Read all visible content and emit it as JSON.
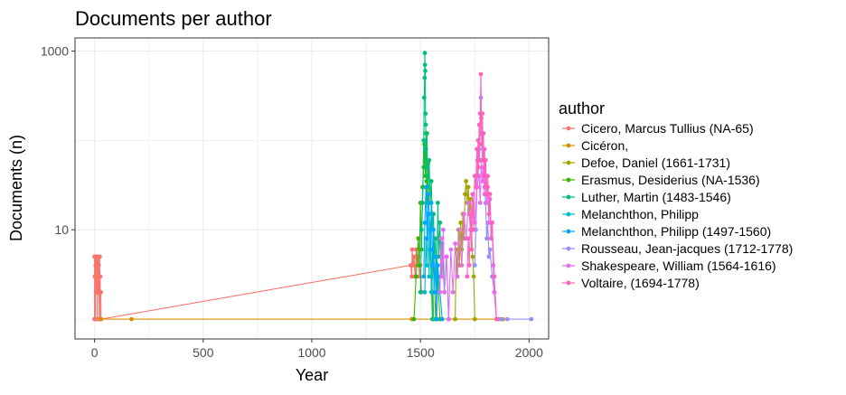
{
  "chart_data": {
    "type": "line",
    "title": "Documents per author",
    "xlabel": "Year",
    "ylabel": "Documents (n)",
    "x_ticks": [
      "0",
      "500",
      "1000",
      "1500",
      "2000"
    ],
    "y_ticks": [
      "10",
      "1000"
    ],
    "xlim": [
      -90,
      2090
    ],
    "ylim": [
      0.6,
      1400
    ],
    "y_scale": "log",
    "grid": true,
    "legend_title": "author",
    "legend_position": "right",
    "series": [
      {
        "name": "Cicero, Marcus Tullius (NA-65)",
        "color": "#F8766D",
        "points": [
          [
            0,
            1
          ],
          [
            0,
            5
          ],
          [
            1,
            3
          ],
          [
            2,
            5
          ],
          [
            3,
            1
          ],
          [
            4,
            3
          ],
          [
            5,
            4
          ],
          [
            6,
            2
          ],
          [
            7,
            5
          ],
          [
            8,
            3
          ],
          [
            9,
            2
          ],
          [
            10,
            4
          ],
          [
            11,
            5
          ],
          [
            12,
            1
          ],
          [
            13,
            3
          ],
          [
            14,
            4
          ],
          [
            15,
            5
          ],
          [
            16,
            2
          ],
          [
            17,
            3
          ],
          [
            18,
            5
          ],
          [
            19,
            4
          ],
          [
            20,
            3
          ],
          [
            21,
            1
          ],
          [
            22,
            2
          ],
          [
            23,
            3
          ],
          [
            24,
            5
          ],
          [
            25,
            2
          ],
          [
            26,
            3
          ],
          [
            27,
            1
          ],
          [
            28,
            2
          ],
          [
            29,
            2
          ],
          [
            30,
            1
          ],
          [
            1455,
            4
          ],
          [
            1460,
            3
          ],
          [
            1462,
            6
          ],
          [
            1465,
            4
          ],
          [
            1470,
            5
          ],
          [
            1475,
            3
          ],
          [
            1480,
            6
          ],
          [
            1485,
            4
          ],
          [
            1490,
            5
          ],
          [
            1495,
            3
          ],
          [
            1500,
            4
          ],
          [
            1505,
            2
          ]
        ]
      },
      {
        "name": "Cicéron,",
        "color": "#D89000",
        "points": [
          [
            30,
            1
          ],
          [
            170,
            1
          ],
          [
            1460,
            1
          ],
          [
            1860,
            1
          ],
          [
            1880,
            1
          ]
        ]
      },
      {
        "name": "Defoe, Daniel (1661-1731)",
        "color": "#A3A500",
        "points": [
          [
            1660,
            1
          ],
          [
            1665,
            6
          ],
          [
            1670,
            3
          ],
          [
            1675,
            10
          ],
          [
            1680,
            4
          ],
          [
            1685,
            12
          ],
          [
            1690,
            6
          ],
          [
            1695,
            15
          ],
          [
            1700,
            8
          ],
          [
            1705,
            25
          ],
          [
            1710,
            35
          ],
          [
            1715,
            20
          ],
          [
            1720,
            30
          ],
          [
            1725,
            15
          ],
          [
            1730,
            22
          ],
          [
            1735,
            10
          ],
          [
            1740,
            5
          ],
          [
            1745,
            3
          ],
          [
            1750,
            1
          ]
        ]
      },
      {
        "name": "Erasmus, Desiderius (NA-1536)",
        "color": "#39B600",
        "points": [
          [
            1470,
            1
          ],
          [
            1480,
            3
          ],
          [
            1490,
            8
          ],
          [
            1495,
            4
          ],
          [
            1500,
            20
          ],
          [
            1505,
            6
          ],
          [
            1510,
            30
          ],
          [
            1515,
            50
          ],
          [
            1518,
            90
          ],
          [
            1520,
            60
          ],
          [
            1522,
            40
          ],
          [
            1525,
            120
          ],
          [
            1528,
            35
          ],
          [
            1530,
            20
          ],
          [
            1535,
            55
          ],
          [
            1540,
            15
          ],
          [
            1545,
            10
          ],
          [
            1550,
            3
          ],
          [
            1555,
            1
          ],
          [
            1560,
            6
          ],
          [
            1570,
            1
          ],
          [
            1580,
            3
          ],
          [
            1590,
            1
          ]
        ]
      },
      {
        "name": "Luther, Martin (1483-1546)",
        "color": "#00BF7D",
        "points": [
          [
            1500,
            2
          ],
          [
            1505,
            10
          ],
          [
            1510,
            20
          ],
          [
            1515,
            100
          ],
          [
            1517,
            300
          ],
          [
            1519,
            500
          ],
          [
            1520,
            950
          ],
          [
            1521,
            700
          ],
          [
            1522,
            600
          ],
          [
            1523,
            200
          ],
          [
            1524,
            150
          ],
          [
            1525,
            80
          ],
          [
            1527,
            50
          ],
          [
            1530,
            120
          ],
          [
            1533,
            40
          ],
          [
            1536,
            30
          ],
          [
            1540,
            60
          ],
          [
            1545,
            20
          ],
          [
            1550,
            35
          ],
          [
            1555,
            10
          ],
          [
            1560,
            15
          ],
          [
            1565,
            5
          ],
          [
            1570,
            8
          ],
          [
            1575,
            2
          ],
          [
            1580,
            20
          ],
          [
            1585,
            5
          ],
          [
            1590,
            12
          ],
          [
            1595,
            3
          ],
          [
            1600,
            7
          ],
          [
            1610,
            2
          ],
          [
            1620,
            5
          ],
          [
            1630,
            1
          ]
        ]
      },
      {
        "name": "Melanchthon, Philipp",
        "color": "#00BFC4",
        "points": [
          [
            1520,
            2
          ],
          [
            1525,
            8
          ],
          [
            1530,
            4
          ],
          [
            1535,
            15
          ],
          [
            1540,
            3
          ],
          [
            1545,
            10
          ],
          [
            1550,
            2
          ],
          [
            1555,
            6
          ],
          [
            1560,
            1
          ]
        ]
      },
      {
        "name": "Melanchthon, Philipp (1497-1560)",
        "color": "#00A9FF",
        "points": [
          [
            1515,
            3
          ],
          [
            1520,
            12
          ],
          [
            1525,
            30
          ],
          [
            1530,
            8
          ],
          [
            1535,
            25
          ],
          [
            1540,
            15
          ],
          [
            1545,
            6
          ],
          [
            1550,
            20
          ],
          [
            1555,
            4
          ],
          [
            1560,
            10
          ],
          [
            1565,
            2
          ],
          [
            1570,
            5
          ],
          [
            1575,
            1
          ],
          [
            1580,
            4
          ],
          [
            1590,
            2
          ],
          [
            1600,
            1
          ]
        ]
      },
      {
        "name": "Rousseau, Jean-jacques (1712-1778)",
        "color": "#9590FF",
        "points": [
          [
            1750,
            4
          ],
          [
            1755,
            10
          ],
          [
            1760,
            30
          ],
          [
            1762,
            60
          ],
          [
            1765,
            40
          ],
          [
            1770,
            80
          ],
          [
            1775,
            150
          ],
          [
            1778,
            300
          ],
          [
            1780,
            120
          ],
          [
            1785,
            60
          ],
          [
            1790,
            80
          ],
          [
            1795,
            30
          ],
          [
            1800,
            20
          ],
          [
            1805,
            8
          ],
          [
            1810,
            12
          ],
          [
            1815,
            5
          ],
          [
            1820,
            6
          ],
          [
            1830,
            3
          ],
          [
            1840,
            2
          ],
          [
            1850,
            1
          ],
          [
            1870,
            1
          ],
          [
            1900,
            1
          ],
          [
            2010,
            1
          ]
        ]
      },
      {
        "name": "Shakespeare, William (1564-1616)",
        "color": "#E76BF3",
        "points": [
          [
            1590,
            2
          ],
          [
            1595,
            8
          ],
          [
            1600,
            3
          ],
          [
            1605,
            10
          ],
          [
            1610,
            2
          ],
          [
            1620,
            5
          ],
          [
            1630,
            1
          ],
          [
            1640,
            6
          ],
          [
            1650,
            2
          ],
          [
            1660,
            7
          ],
          [
            1670,
            3
          ],
          [
            1680,
            10
          ],
          [
            1690,
            4
          ],
          [
            1700,
            15
          ],
          [
            1710,
            8
          ],
          [
            1720,
            20
          ],
          [
            1730,
            10
          ],
          [
            1740,
            25
          ],
          [
            1750,
            12
          ],
          [
            1760,
            30
          ],
          [
            1770,
            40
          ],
          [
            1775,
            20
          ],
          [
            1780,
            60
          ],
          [
            1785,
            35
          ],
          [
            1790,
            50
          ],
          [
            1795,
            25
          ],
          [
            1800,
            40
          ],
          [
            1805,
            20
          ],
          [
            1810,
            30
          ],
          [
            1815,
            12
          ],
          [
            1820,
            22
          ],
          [
            1825,
            8
          ],
          [
            1830,
            12
          ],
          [
            1835,
            4
          ],
          [
            1840,
            2
          ],
          [
            1850,
            1
          ]
        ]
      },
      {
        "name": "Voltaire,  (1694-1778)",
        "color": "#FF62BC",
        "points": [
          [
            1715,
            3
          ],
          [
            1720,
            8
          ],
          [
            1725,
            4
          ],
          [
            1730,
            15
          ],
          [
            1735,
            6
          ],
          [
            1740,
            25
          ],
          [
            1745,
            10
          ],
          [
            1750,
            40
          ],
          [
            1755,
            30
          ],
          [
            1760,
            80
          ],
          [
            1762,
            40
          ],
          [
            1765,
            100
          ],
          [
            1768,
            50
          ],
          [
            1770,
            150
          ],
          [
            1772,
            60
          ],
          [
            1775,
            200
          ],
          [
            1778,
            550
          ],
          [
            1780,
            180
          ],
          [
            1782,
            90
          ],
          [
            1785,
            200
          ],
          [
            1788,
            60
          ],
          [
            1790,
            120
          ],
          [
            1792,
            40
          ],
          [
            1795,
            80
          ],
          [
            1798,
            30
          ],
          [
            1800,
            60
          ],
          [
            1805,
            25
          ],
          [
            1810,
            40
          ],
          [
            1815,
            15
          ],
          [
            1820,
            25
          ],
          [
            1825,
            8
          ],
          [
            1830,
            12
          ],
          [
            1840,
            3
          ],
          [
            1850,
            1
          ]
        ]
      }
    ]
  }
}
